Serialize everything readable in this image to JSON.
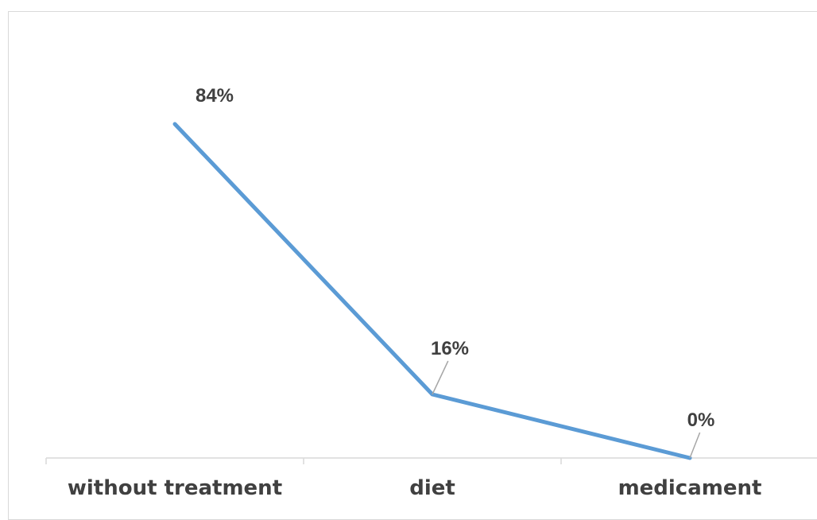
{
  "chart_data": {
    "type": "line",
    "categories": [
      "without treatment",
      "diet",
      "medicament"
    ],
    "series": [
      {
        "values": [
          84,
          16,
          0
        ],
        "data_labels": [
          "84%",
          "16%",
          "0%"
        ]
      }
    ],
    "ylim": [
      0,
      100
    ],
    "grid": false,
    "legend": "none",
    "colors": {
      "line": "#5b9bd5",
      "axis": "#d9d9d9",
      "label": "#404040",
      "leader": "#a6a6a6"
    }
  }
}
